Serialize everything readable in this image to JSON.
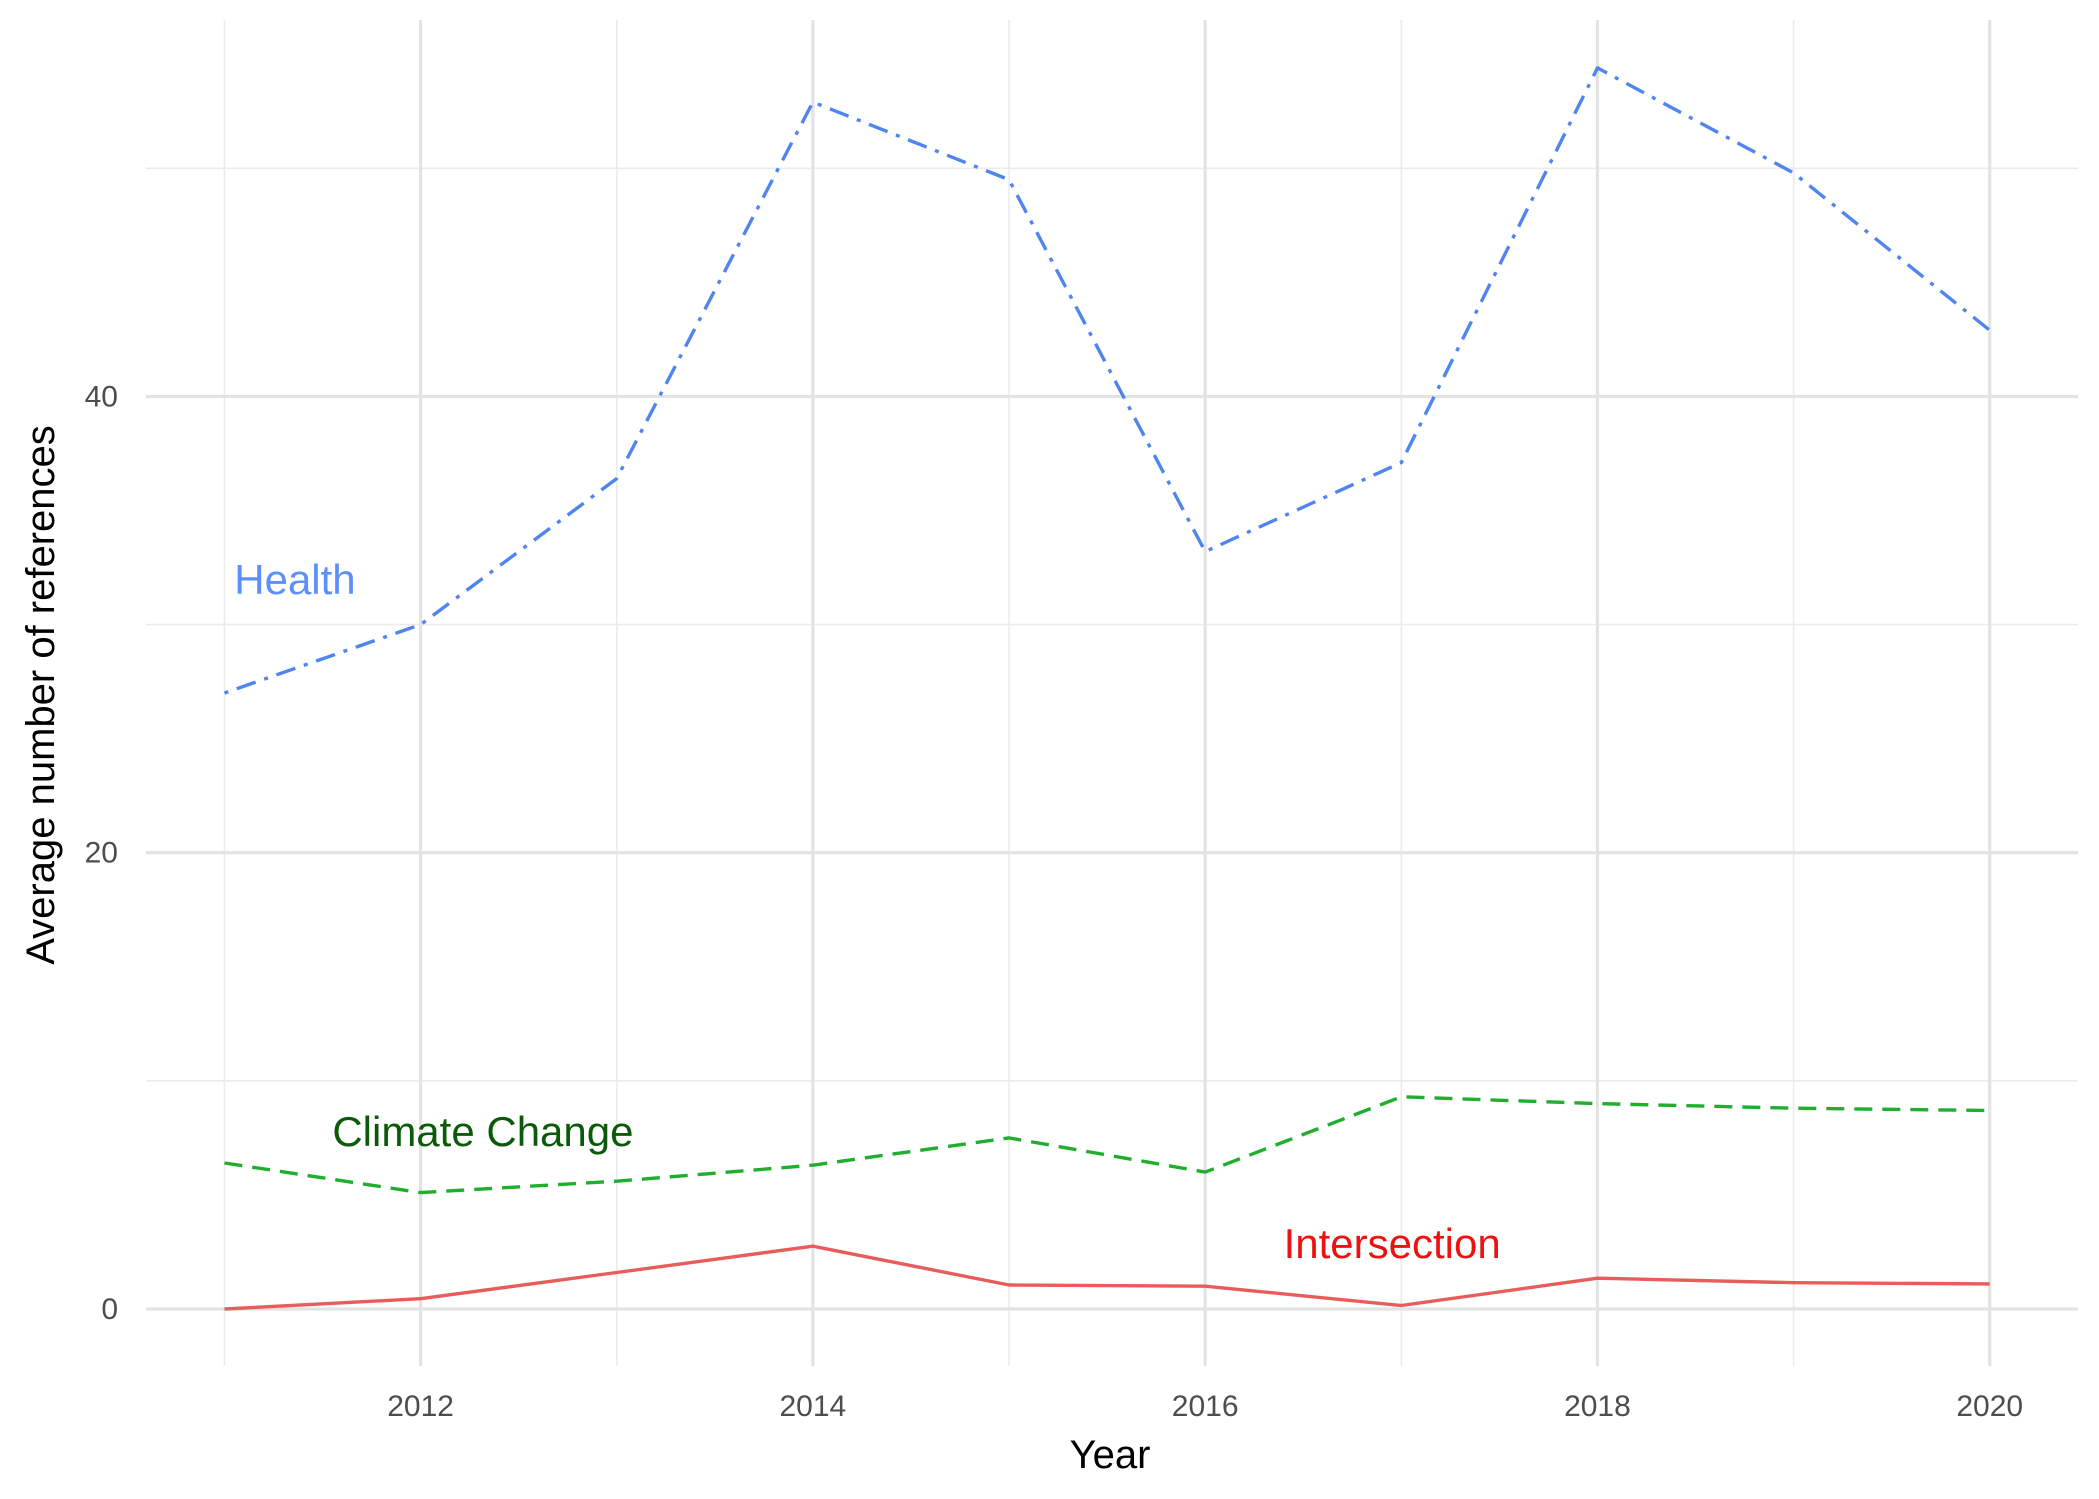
{
  "chart_data": {
    "type": "line",
    "title": "",
    "xlabel": "Year",
    "ylabel": "Average number of references",
    "x": [
      2011,
      2012,
      2013,
      2014,
      2015,
      2016,
      2017,
      2018,
      2019,
      2020
    ],
    "xlim": [
      2010.6,
      2020.45
    ],
    "ylim": [
      -2.5,
      56.5
    ],
    "x_ticks": [
      2012,
      2014,
      2016,
      2018,
      2020
    ],
    "y_ticks": [
      0,
      20,
      40
    ],
    "y_minor_grid": [
      10,
      30,
      50
    ],
    "x_minor_grid": [
      2011,
      2013,
      2015,
      2017,
      2019
    ],
    "grid": true,
    "legend": "direct labels",
    "series": [
      {
        "name": "Health",
        "color": "#5085f0",
        "linestyle": "dotdash",
        "label_color": "#5b8ff9",
        "label_anchor": [
          2011.05,
          32
        ],
        "values": [
          27.0,
          30.0,
          36.4,
          52.9,
          49.5,
          33.2,
          37.1,
          54.4,
          49.8,
          42.9
        ]
      },
      {
        "name": "Climate Change",
        "color": "#1fae2d",
        "linestyle": "dashed",
        "label_color": "#0a5a0a",
        "label_anchor": [
          2011.55,
          7.8
        ],
        "values": [
          6.4,
          5.1,
          5.6,
          6.3,
          7.5,
          6.0,
          9.3,
          9.0,
          8.8,
          8.7
        ]
      },
      {
        "name": "Intersection",
        "color": "#e85c5c",
        "linestyle": "solid",
        "label_color": "#ee1111",
        "label_anchor": [
          2016.4,
          2.9
        ],
        "values": [
          0.0,
          0.45,
          1.6,
          2.75,
          1.05,
          1.0,
          0.15,
          1.35,
          1.15,
          1.1
        ]
      }
    ]
  }
}
